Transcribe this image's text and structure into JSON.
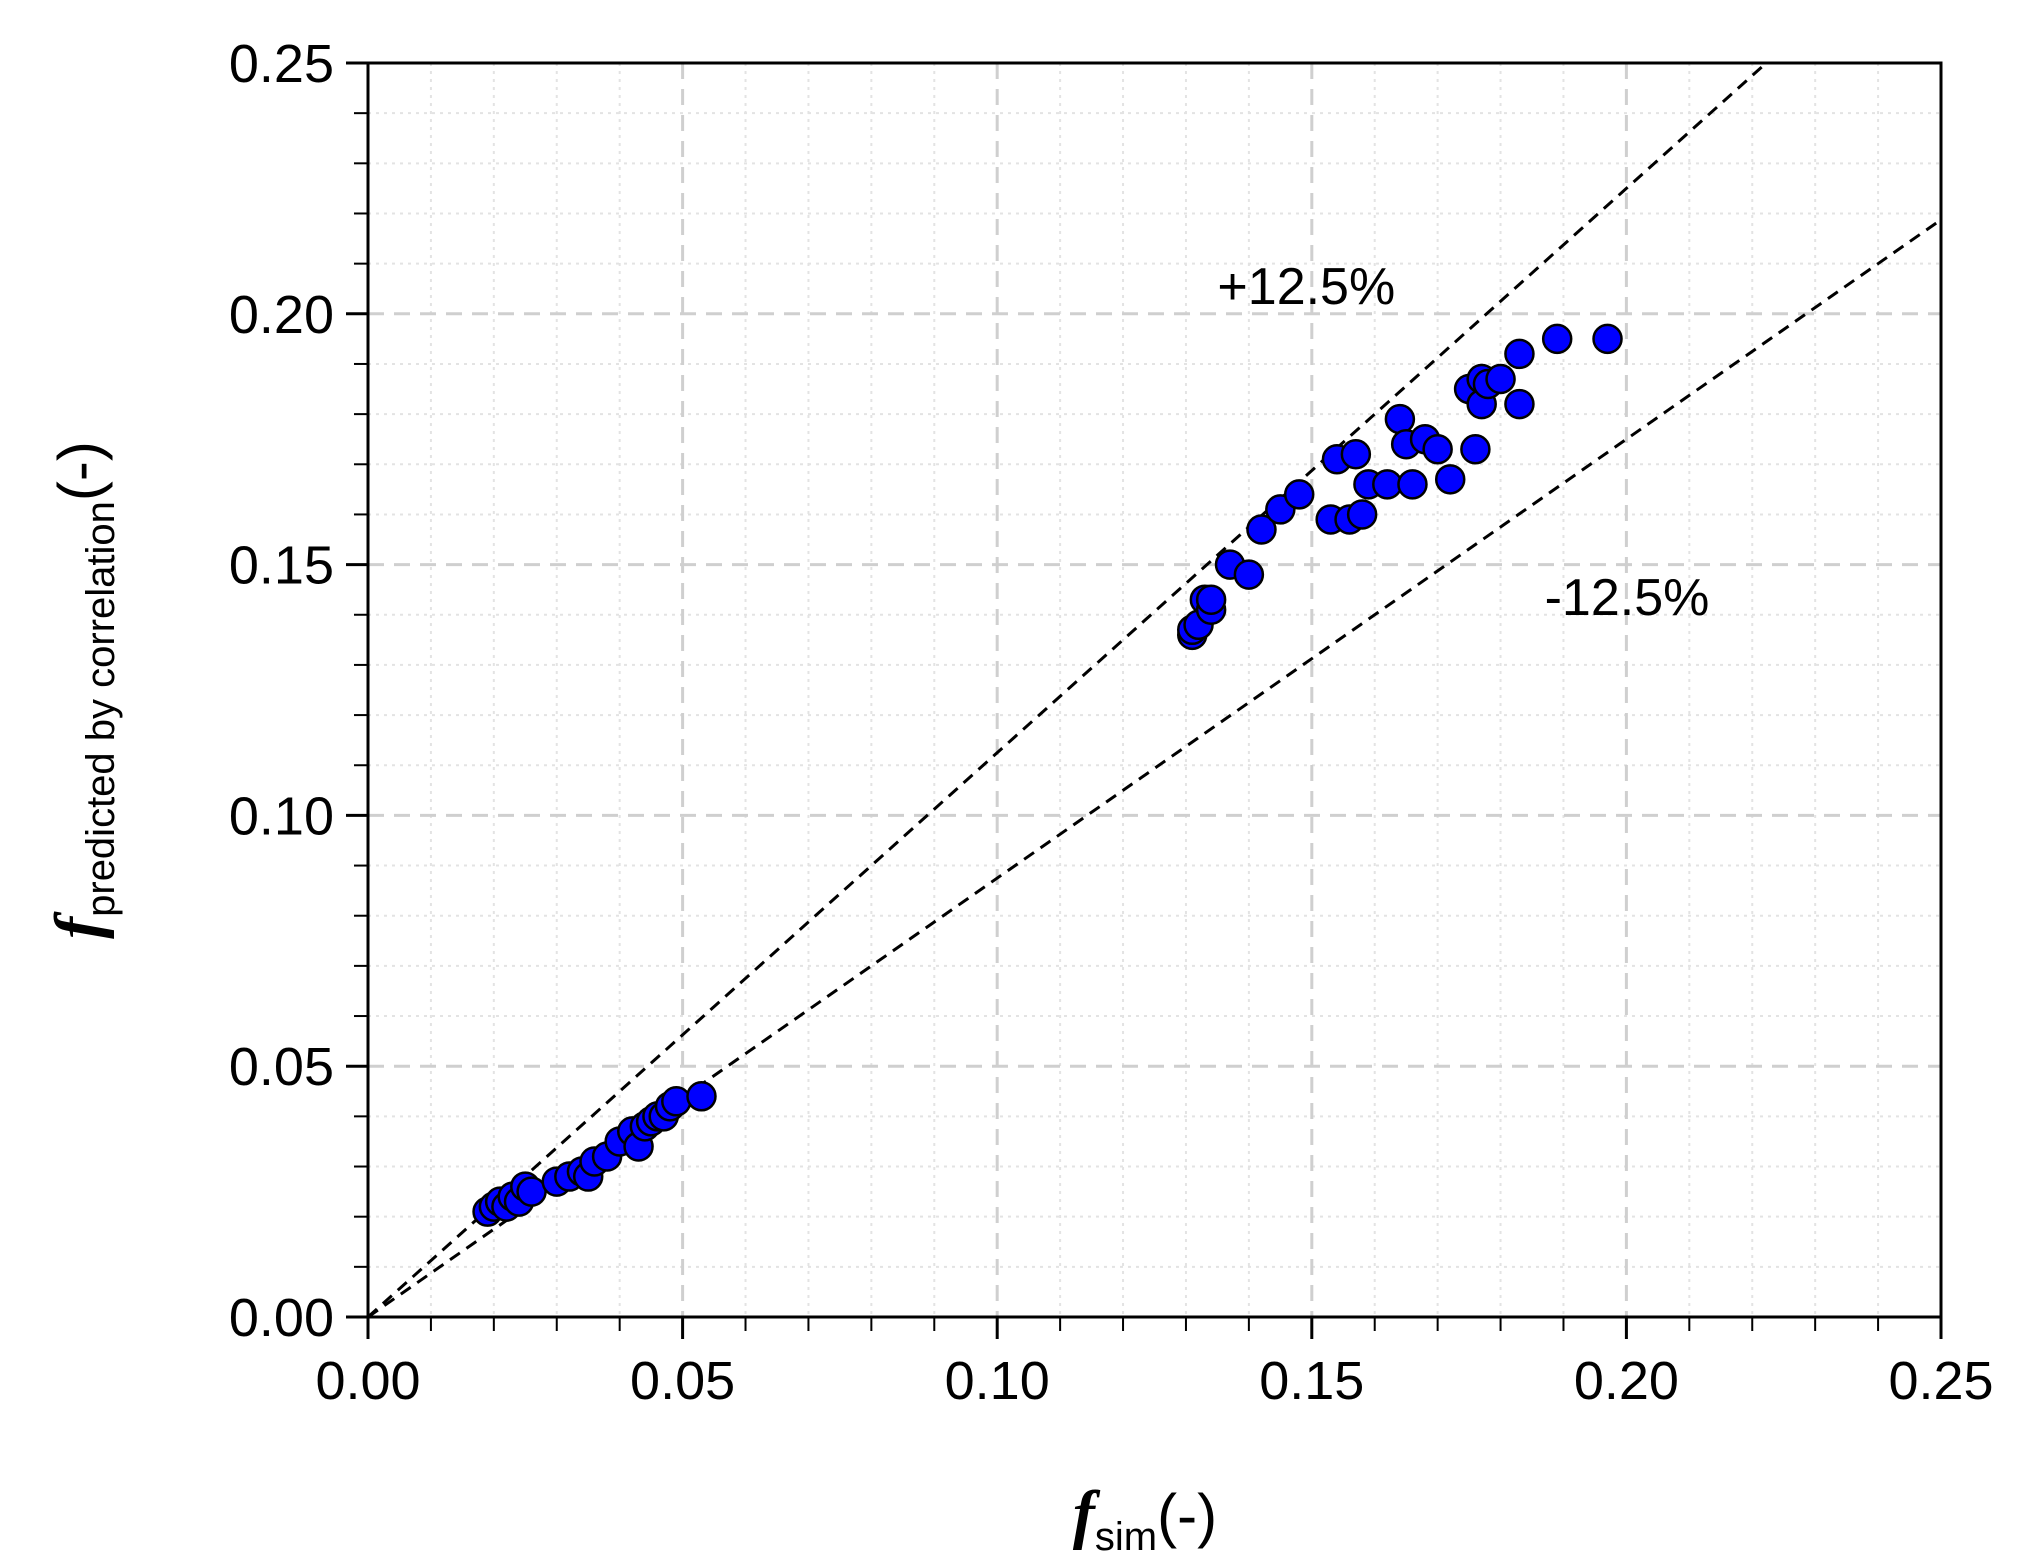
{
  "chart_data": {
    "type": "scatter",
    "title": "",
    "xlabel": {
      "symbol": "f",
      "subscript": "sim",
      "suffix": "(-)"
    },
    "ylabel": {
      "symbol": "f",
      "subscript": "predicted by correlation",
      "suffix": "(-)"
    },
    "xlim": [
      0,
      0.25
    ],
    "ylim": [
      0,
      0.25
    ],
    "x_ticks": [
      "0.00",
      "0.05",
      "0.10",
      "0.15",
      "0.20",
      "0.25"
    ],
    "y_ticks": [
      "0.00",
      "0.05",
      "0.10",
      "0.15",
      "0.20",
      "0.25"
    ],
    "grid": true,
    "marker_color": "#0000ff",
    "marker_edge_color": "#000000",
    "reference_lines": [
      {
        "label": "+12.5%",
        "slope": 1.125
      },
      {
        "label": "-12.5%",
        "slope": 0.875
      }
    ],
    "series": [
      {
        "x": [
          0.019,
          0.02,
          0.021,
          0.022,
          0.023,
          0.024,
          0.025,
          0.026,
          0.03,
          0.032,
          0.034,
          0.035,
          0.036,
          0.038,
          0.04,
          0.042,
          0.043,
          0.044,
          0.045,
          0.046,
          0.047,
          0.048,
          0.049,
          0.053,
          0.131,
          0.131,
          0.132,
          0.133,
          0.134,
          0.134,
          0.137,
          0.14,
          0.142,
          0.145,
          0.148,
          0.153,
          0.154,
          0.156,
          0.157,
          0.158,
          0.159,
          0.162,
          0.164,
          0.165,
          0.166,
          0.168,
          0.17,
          0.172,
          0.175,
          0.176,
          0.177,
          0.177,
          0.178,
          0.18,
          0.183,
          0.183,
          0.189,
          0.197
        ],
        "y": [
          0.021,
          0.022,
          0.023,
          0.022,
          0.024,
          0.023,
          0.026,
          0.025,
          0.027,
          0.028,
          0.029,
          0.028,
          0.031,
          0.032,
          0.035,
          0.037,
          0.034,
          0.038,
          0.039,
          0.04,
          0.04,
          0.042,
          0.043,
          0.044,
          0.136,
          0.137,
          0.138,
          0.143,
          0.141,
          0.143,
          0.15,
          0.148,
          0.157,
          0.161,
          0.164,
          0.159,
          0.171,
          0.159,
          0.172,
          0.16,
          0.166,
          0.166,
          0.179,
          0.174,
          0.166,
          0.175,
          0.173,
          0.167,
          0.185,
          0.173,
          0.182,
          0.187,
          0.186,
          0.187,
          0.192,
          0.182,
          0.195,
          0.195
        ]
      }
    ]
  }
}
